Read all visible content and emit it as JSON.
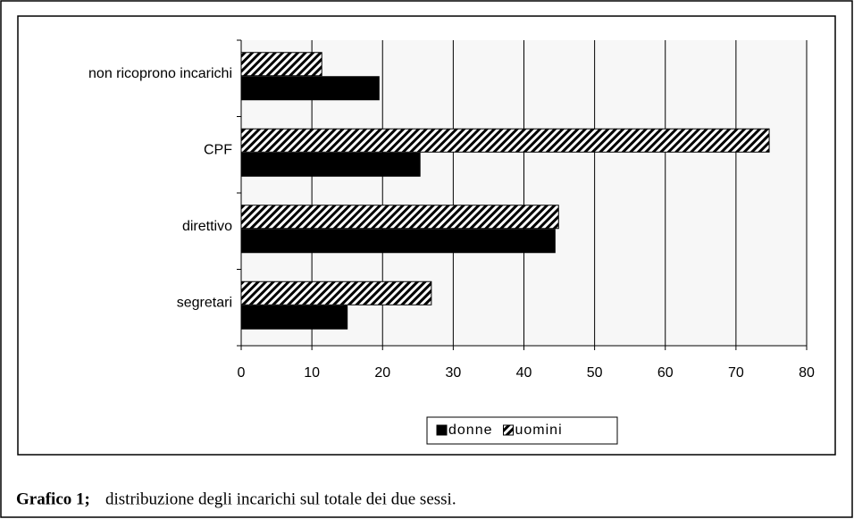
{
  "chart_data": {
    "type": "hbar",
    "caption_label": "Grafico 1;",
    "caption": "distribuzione degli incarichi sul totale dei due sessi.",
    "categories": [
      "non ricoprono incarichi",
      "CPF",
      "direttivo",
      "segretari"
    ],
    "series": [
      {
        "name": "donne",
        "color": "#000000",
        "values": [
          19.5,
          25.3,
          44.4,
          15
        ]
      },
      {
        "name": "uomini",
        "color": "hatch",
        "values": [
          11.4,
          74.7,
          44.9,
          26.9
        ]
      }
    ],
    "xlim": [
      0,
      80
    ],
    "xticks": [
      0,
      10,
      20,
      30,
      40,
      50,
      60,
      70,
      80
    ],
    "grid": true,
    "legend": "bottom"
  }
}
